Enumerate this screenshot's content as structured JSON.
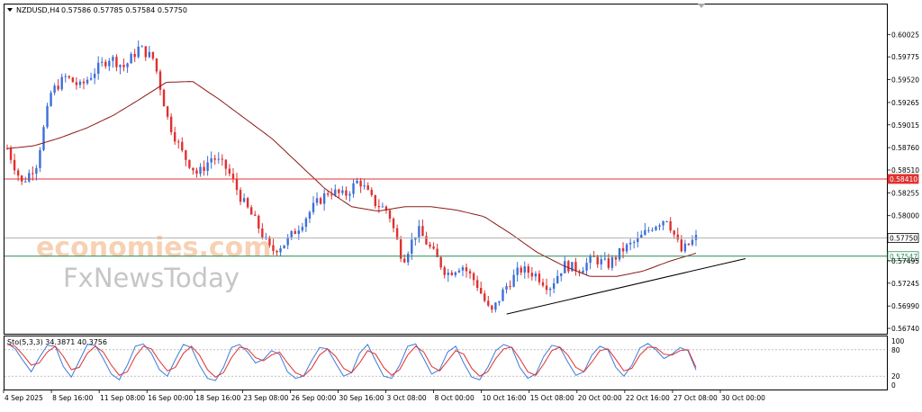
{
  "header": {
    "symbol": "NZDUSD,H4",
    "ohlc": "0.57586 0.57785 0.57584 0.57750",
    "indicator": "Sto(5,3,3) 34.3871 40.3756"
  },
  "watermark": {
    "line1": "economies.com",
    "line2": "FxNewsToday"
  },
  "colors": {
    "bull": "#3d6fd8",
    "bear": "#e03030",
    "ma": "#8b1a1a",
    "resistance": "#e03030",
    "support": "#2e8b57",
    "trendline": "#000000",
    "stoch_main": "#3d7bd8",
    "stoch_signal": "#e03030"
  },
  "chart_data": [
    {
      "type": "candlestick",
      "title": "NZDUSD,H4",
      "x_labels": [
        "4 Sep 2025",
        "8 Sep 16:00",
        "11 Sep 08:00",
        "16 Sep 00:00",
        "18 Sep 16:00",
        "23 Sep 08:00",
        "26 Sep 00:00",
        "30 Sep 16:00",
        "3 Oct 08:00",
        "8 Oct 00:00",
        "10 Oct 16:00",
        "15 Oct 08:00",
        "20 Oct 00:00",
        "22 Oct 16:00",
        "27 Oct 08:00",
        "30 Oct 00:00"
      ],
      "y_ticks": [
        "0.60025",
        "0.59775",
        "0.59520",
        "0.59265",
        "0.59015",
        "0.58760",
        "0.58510",
        "0.58255",
        "0.58000",
        "0.57495",
        "0.57245",
        "0.56990",
        "0.56740"
      ],
      "ylim": [
        0.5674,
        0.6025
      ],
      "series": [
        {
          "name": "price",
          "anchors": [
            0.5875,
            0.5836,
            0.5858,
            0.5938,
            0.5955,
            0.5944,
            0.5962,
            0.5977,
            0.5966,
            0.5988,
            0.5975,
            0.5905,
            0.5868,
            0.5846,
            0.5866,
            0.5852,
            0.5818,
            0.5792,
            0.576,
            0.577,
            0.579,
            0.5812,
            0.5828,
            0.5822,
            0.584,
            0.5815,
            0.5805,
            0.575,
            0.5785,
            0.576,
            0.5735,
            0.5745,
            0.5725,
            0.569,
            0.572,
            0.574,
            0.5735,
            0.572,
            0.5745,
            0.574,
            0.5752,
            0.5745,
            0.5762,
            0.5772,
            0.5788,
            0.5798,
            0.576,
            0.5775
          ]
        },
        {
          "name": "moving average",
          "anchors": [
            0.5875,
            0.5878,
            0.5887,
            0.5898,
            0.5912,
            0.593,
            0.5949,
            0.595,
            0.593,
            0.5908,
            0.5886,
            0.5858,
            0.583,
            0.581,
            0.5805,
            0.581,
            0.581,
            0.5806,
            0.5799,
            0.578,
            0.5759,
            0.5744,
            0.5732,
            0.5732,
            0.5738,
            0.5749,
            0.5758
          ]
        }
      ],
      "horizontal_lines": [
        {
          "label": "0.58410",
          "value": 0.5841,
          "kind": "resistance"
        },
        {
          "label": "0.57750",
          "value": 0.5775,
          "kind": "current"
        },
        {
          "label": "0.57547",
          "value": 0.57547,
          "kind": "support"
        }
      ],
      "trendline": {
        "from": [
          "10 Oct 16:00",
          0.569
        ],
        "to": [
          "30 Oct 00:00",
          0.5752
        ]
      },
      "grid": false
    },
    {
      "type": "line",
      "title": "Sto(5,3,3) 34.3871 40.3756",
      "y_ticks": [
        "100",
        "80",
        "20",
        "0"
      ],
      "ylim": [
        0,
        100
      ],
      "levels": [
        80,
        20
      ],
      "series": [
        {
          "name": "main",
          "values": [
            95,
            82,
            55,
            30,
            62,
            90,
            88,
            42,
            18,
            55,
            92,
            90,
            60,
            25,
            12,
            45,
            88,
            93,
            72,
            35,
            20,
            58,
            92,
            85,
            45,
            15,
            10,
            40,
            85,
            92,
            75,
            50,
            58,
            78,
            70,
            30,
            15,
            20,
            55,
            85,
            82,
            50,
            20,
            28,
            72,
            92,
            55,
            20,
            15,
            45,
            88,
            93,
            60,
            25,
            35,
            75,
            88,
            50,
            18,
            12,
            40,
            78,
            92,
            85,
            40,
            15,
            25,
            65,
            90,
            86,
            52,
            22,
            30,
            68,
            88,
            80,
            40,
            20,
            45,
            84,
            94,
            80,
            60,
            70,
            85,
            78,
            34
          ]
        },
        {
          "name": "signal",
          "values": [
            92,
            88,
            68,
            45,
            50,
            75,
            88,
            65,
            35,
            40,
            72,
            88,
            75,
            45,
            22,
            30,
            65,
            88,
            82,
            55,
            32,
            40,
            72,
            88,
            68,
            35,
            18,
            28,
            62,
            86,
            82,
            62,
            55,
            68,
            75,
            50,
            28,
            20,
            38,
            68,
            82,
            65,
            38,
            28,
            50,
            78,
            70,
            40,
            22,
            35,
            68,
            88,
            75,
            42,
            32,
            55,
            78,
            70,
            38,
            20,
            30,
            60,
            82,
            86,
            60,
            30,
            22,
            48,
            78,
            86,
            68,
            40,
            30,
            52,
            78,
            82,
            58,
            32,
            38,
            68,
            86,
            85,
            70,
            68,
            78,
            80,
            40
          ]
        }
      ]
    }
  ]
}
